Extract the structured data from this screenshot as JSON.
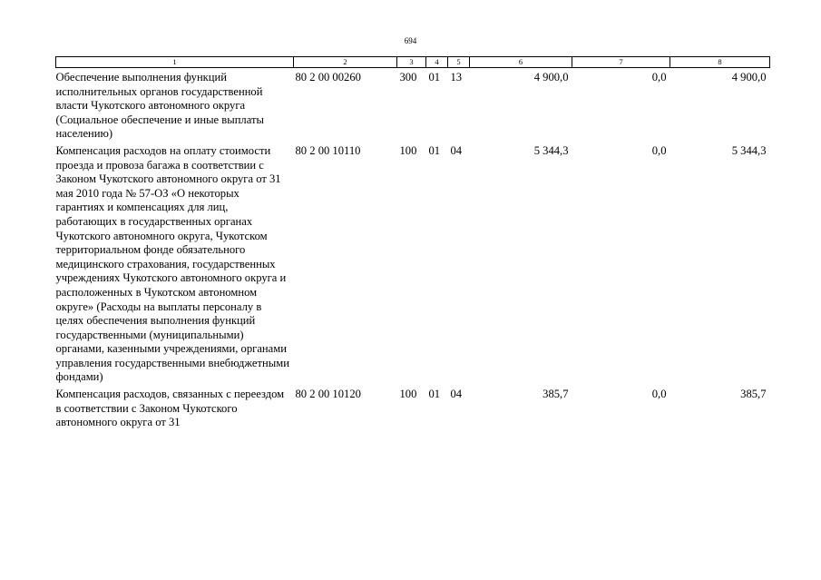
{
  "page_number": "694",
  "table": {
    "header": [
      "1",
      "2",
      "3",
      "4",
      "5",
      "6",
      "7",
      "8"
    ],
    "rows": [
      {
        "name": "Обеспечение выполнения функций исполнительных органов государственной власти Чукотского автономного округа (Социальное обеспечение и иные выплаты населению)",
        "code": "80 2 00 00260",
        "c3": "300",
        "c4": "01",
        "c5": "13",
        "c6": "4 900,0",
        "c7": "0,0",
        "c8": "4 900,0"
      },
      {
        "name": "Компенсация расходов на оплату стоимости проезда и провоза багажа в соответствии с Законом Чукотского автономного округа от 31 мая 2010 года № 57-ОЗ «О некоторых гарантиях и компенсациях для лиц, работающих в государственных органах Чукотского автономного округа, Чукотском территориальном фонде обязательного медицинского страхования, государственных учреждениях Чукотского автономного округа и расположенных в Чукотском автономном округе» (Расходы на выплаты персоналу в целях обеспечения выполнения функций государственными (муниципальными) органами, казенными учреждениями, органами управления государственными внебюджетными фондами)",
        "code": "80 2 00 10110",
        "c3": "100",
        "c4": "01",
        "c5": "04",
        "c6": "5 344,3",
        "c7": "0,0",
        "c8": "5 344,3"
      },
      {
        "name": "Компенсация расходов, связанных с переездом в соответствии с Законом Чукотского автономного округа от 31",
        "code": "80 2 00 10120",
        "c3": "100",
        "c4": "01",
        "c5": "04",
        "c6": "385,7",
        "c7": "0,0",
        "c8": "385,7"
      }
    ]
  }
}
